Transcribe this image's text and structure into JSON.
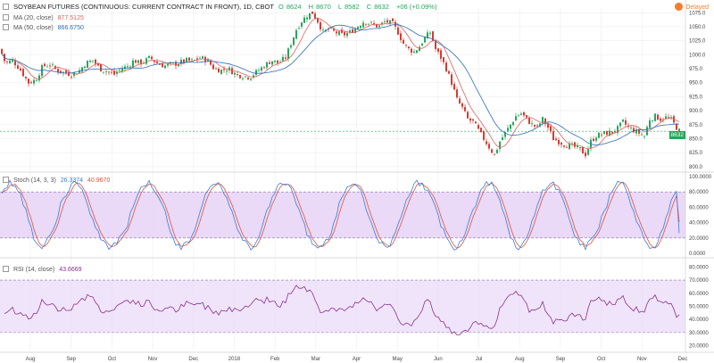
{
  "header": {
    "title": "SOYBEAN FUTURES (CONTINUOUS: CURRENT CONTRACT IN FRONT), 1D, CBOT",
    "ohlc": [
      {
        "k": "O",
        "v": "8624"
      },
      {
        "k": "H",
        "v": "8670"
      },
      {
        "k": "L",
        "v": "8582"
      },
      {
        "k": "C",
        "v": "8632"
      }
    ],
    "change": "+06 (+0.09%)",
    "delayed_label": "Delayed",
    "last_price": "8632"
  },
  "legends": {
    "ma20_name": "MA (20, close)",
    "ma20_value": "877.5125",
    "ma50_name": "MA (50, close)",
    "ma50_value": "866.6750",
    "stoch_name": "Stoch (14, 3, 3)",
    "stoch_k": "26.3374",
    "stoch_d": "40.9670",
    "rsi_name": "RSI (14, close)",
    "rsi_value": "43.6669"
  },
  "colors": {
    "up": "#26a65b",
    "down": "#d83a30",
    "ma20": "#e0625a",
    "ma50": "#2e6fb8",
    "stoch_k": "#3b7dd8",
    "stoch_d": "#e2533a",
    "rsi": "#8c2f8e",
    "band": "#e6d2f6"
  },
  "chart_data": [
    {
      "type": "candlestick",
      "title": "SOYBEAN FUTURES (CONTINUOUS: CURRENT CONTRACT IN FRONT), 1D, CBOT",
      "x_ticks": [
        "Aug",
        "Sep",
        "Oct",
        "Nov",
        "Dec",
        "2018",
        "Feb",
        "Mar",
        "Apr",
        "May",
        "Jun",
        "Jul",
        "Aug",
        "Sep",
        "Oct",
        "Nov",
        "Dec"
      ],
      "y_ticks": [
        "800.0",
        "825.0",
        "850.0",
        "875.0",
        "900.0",
        "925.0",
        "950.0",
        "975.0",
        "1000.0",
        "1025.0",
        "1050.0",
        "1075.0"
      ],
      "ylim": [
        795,
        1085
      ],
      "close_path": [
        [
          0,
          1010
        ],
        [
          6,
          985
        ],
        [
          14,
          990
        ],
        [
          22,
          975
        ],
        [
          32,
          950
        ],
        [
          40,
          955
        ],
        [
          48,
          980
        ],
        [
          56,
          982
        ],
        [
          64,
          972
        ],
        [
          72,
          968
        ],
        [
          80,
          965
        ],
        [
          88,
          970
        ],
        [
          96,
          985
        ],
        [
          104,
          990
        ],
        [
          112,
          975
        ],
        [
          120,
          970
        ],
        [
          128,
          965
        ],
        [
          136,
          975
        ],
        [
          144,
          980
        ],
        [
          150,
          990
        ],
        [
          156,
          985
        ],
        [
          162,
          988
        ],
        [
          168,
          995
        ],
        [
          176,
          985
        ],
        [
          184,
          980
        ],
        [
          192,
          982
        ],
        [
          200,
          985
        ],
        [
          208,
          990
        ],
        [
          216,
          988
        ],
        [
          224,
          995
        ],
        [
          232,
          990
        ],
        [
          240,
          975
        ],
        [
          248,
          972
        ],
        [
          256,
          975
        ],
        [
          264,
          965
        ],
        [
          272,
          962
        ],
        [
          280,
          960
        ],
        [
          288,
          970
        ],
        [
          296,
          980
        ],
        [
          304,
          990
        ],
        [
          312,
          985
        ],
        [
          320,
          995
        ],
        [
          326,
          1020
        ],
        [
          332,
          1045
        ],
        [
          338,
          1060
        ],
        [
          344,
          1070
        ],
        [
          350,
          1075
        ],
        [
          356,
          1060
        ],
        [
          362,
          1040
        ],
        [
          368,
          1045
        ],
        [
          376,
          1040
        ],
        [
          384,
          1035
        ],
        [
          392,
          1040
        ],
        [
          400,
          1050
        ],
        [
          408,
          1060
        ],
        [
          416,
          1055
        ],
        [
          424,
          1050
        ],
        [
          432,
          1060
        ],
        [
          440,
          1055
        ],
        [
          446,
          1040
        ],
        [
          452,
          1020
        ],
        [
          458,
          1010
        ],
        [
          464,
          1005
        ],
        [
          470,
          1015
        ],
        [
          476,
          1030
        ],
        [
          482,
          1040
        ],
        [
          488,
          1010
        ],
        [
          494,
          995
        ],
        [
          500,
          975
        ],
        [
          506,
          950
        ],
        [
          512,
          920
        ],
        [
          518,
          905
        ],
        [
          524,
          885
        ],
        [
          530,
          880
        ],
        [
          536,
          865
        ],
        [
          542,
          850
        ],
        [
          548,
          835
        ],
        [
          554,
          820
        ],
        [
          560,
          845
        ],
        [
          566,
          860
        ],
        [
          572,
          875
        ],
        [
          578,
          890
        ],
        [
          584,
          895
        ],
        [
          590,
          885
        ],
        [
          596,
          875
        ],
        [
          602,
          870
        ],
        [
          608,
          885
        ],
        [
          614,
          870
        ],
        [
          620,
          850
        ],
        [
          626,
          845
        ],
        [
          632,
          840
        ],
        [
          638,
          838
        ],
        [
          644,
          835
        ],
        [
          650,
          830
        ],
        [
          656,
          822
        ],
        [
          662,
          845
        ],
        [
          668,
          855
        ],
        [
          674,
          858
        ],
        [
          680,
          860
        ],
        [
          686,
          862
        ],
        [
          692,
          868
        ],
        [
          698,
          880
        ],
        [
          704,
          870
        ],
        [
          710,
          865
        ],
        [
          716,
          860
        ],
        [
          722,
          855
        ],
        [
          728,
          885
        ],
        [
          734,
          890
        ],
        [
          740,
          885
        ],
        [
          746,
          888
        ],
        [
          752,
          884
        ],
        [
          758,
          870
        ],
        [
          762,
          862
        ]
      ],
      "ma20": [
        865,
        870,
        868,
        872,
        874,
        876,
        877.5
      ],
      "ma50": [
        860,
        861,
        862,
        864,
        865,
        866,
        866.7
      ],
      "last": 863.2
    },
    {
      "type": "line",
      "title": "Stoch (14, 3, 3)",
      "y_ticks": [
        "0.0000",
        "20.0000",
        "40.0000",
        "60.0000",
        "80.0000",
        "100.0000"
      ],
      "ylim": [
        0,
        100
      ],
      "band": [
        20,
        80
      ],
      "series": [
        {
          "name": "%K",
          "last": 26.3374
        },
        {
          "name": "%D",
          "last": 40.967
        }
      ]
    },
    {
      "type": "line",
      "title": "RSI (14, close)",
      "y_ticks": [
        "20.0000",
        "30.0000",
        "40.0000",
        "50.0000",
        "60.0000",
        "70.0000",
        "80.0000"
      ],
      "ylim": [
        17,
        85
      ],
      "band": [
        30,
        70
      ],
      "series": [
        {
          "name": "RSI",
          "last": 43.6669
        }
      ]
    }
  ]
}
